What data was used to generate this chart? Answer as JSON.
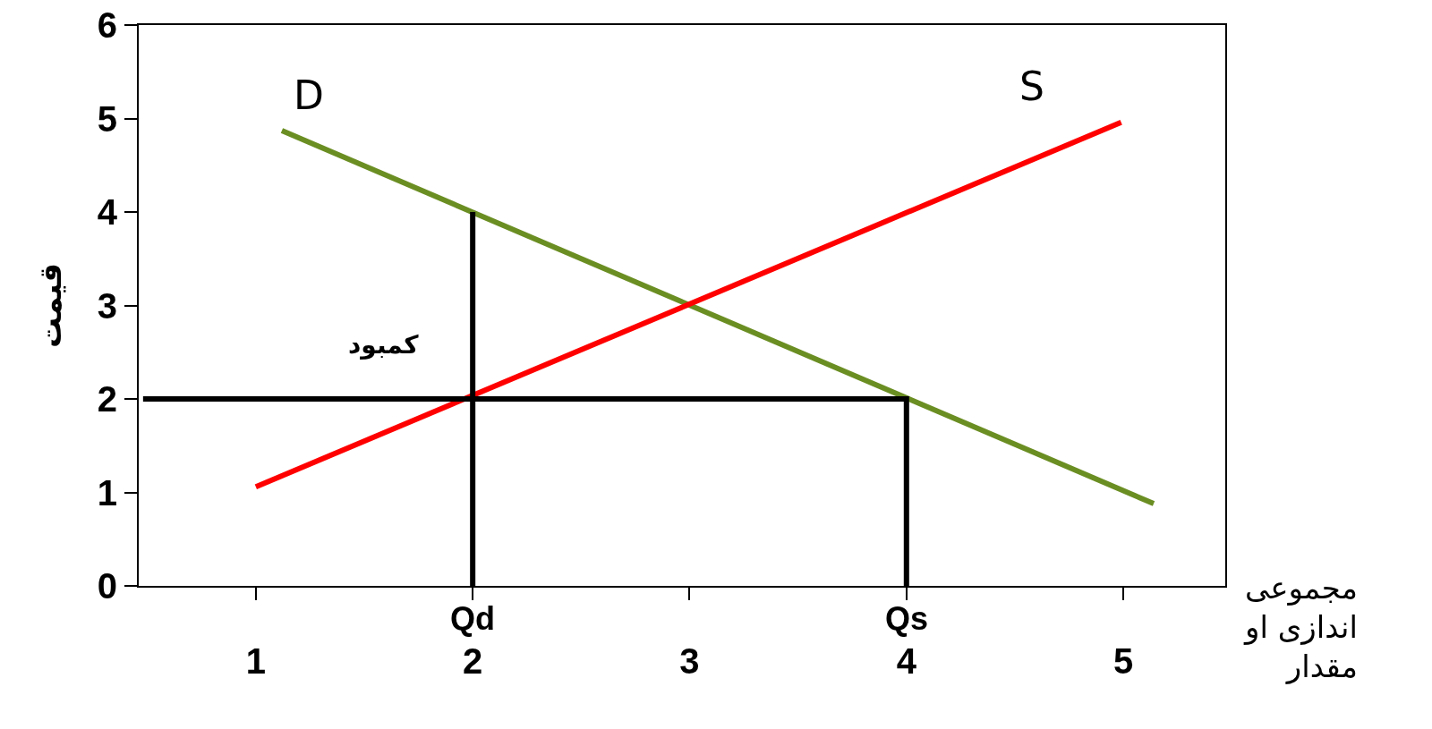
{
  "chart_data": {
    "type": "line",
    "xlabel": "مجموعی اندازی او مقدار",
    "ylabel": "قیمت",
    "xlim": [
      0.46,
      5.47
    ],
    "xticks": [
      1,
      2,
      3,
      4,
      5
    ],
    "ylim": [
      0,
      6
    ],
    "yticks": [
      0,
      1,
      2,
      3,
      4,
      5,
      6
    ],
    "grid": false,
    "marker": "none",
    "line_style": "solid",
    "series": [
      {
        "name": "D",
        "color": "#6b8e23",
        "x": [
          1.12,
          5.14
        ],
        "values": [
          4.87,
          0.88
        ]
      },
      {
        "name": "S",
        "color": "#ff0000",
        "x": [
          1.0,
          4.99
        ],
        "values": [
          1.06,
          4.96
        ]
      },
      {
        "color": "#000000",
        "x": [
          0.48,
          4,
          4
        ],
        "values": [
          2,
          2,
          0
        ]
      },
      {
        "color": "#000000",
        "x": [
          2,
          2
        ],
        "values": [
          0,
          4
        ]
      }
    ],
    "annotations": [
      "کمبود",
      {
        "text": "Qd",
        "x": 2,
        "y": 0
      },
      {
        "text": "Qs",
        "x": 4,
        "y": 0
      }
    ]
  }
}
